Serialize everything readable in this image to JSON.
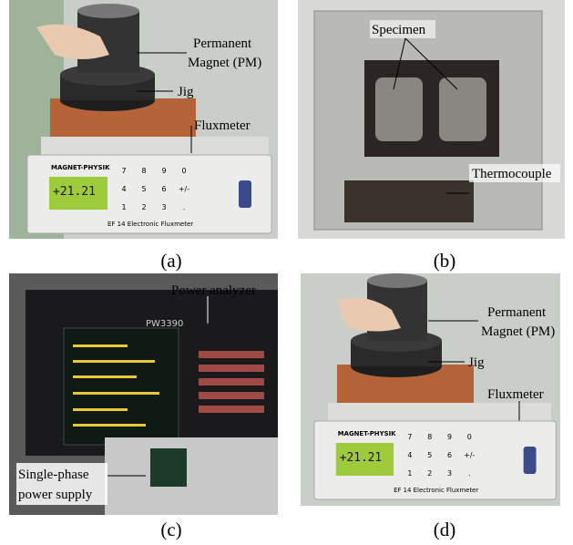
{
  "panels": [
    {
      "caption": "(a)",
      "annotations": [
        {
          "lines": [
            "Permanent",
            "Magnet (PM)"
          ]
        },
        {
          "lines": [
            "Jig"
          ]
        },
        {
          "lines": [
            "Fluxmeter"
          ]
        }
      ],
      "device": {
        "brand": "MAGNET-PHYSIK",
        "reading": "+21.21",
        "model": "EF 14 Electronic Fluxmeter",
        "keys": [
          "7",
          "8",
          "9",
          "0",
          "4",
          "5",
          "6",
          "+/-",
          "1",
          "2",
          "3",
          "."
        ]
      }
    },
    {
      "caption": "(b)",
      "annotations": [
        {
          "lines": [
            "Specimen"
          ]
        },
        {
          "lines": [
            "Thermocouple"
          ]
        }
      ]
    },
    {
      "caption": "(c)",
      "annotations": [
        {
          "lines": [
            "Power analyzer"
          ]
        },
        {
          "lines": [
            "Single-phase",
            "power supply"
          ]
        }
      ],
      "device": {
        "model": "PW3390"
      }
    },
    {
      "caption": "(d)",
      "annotations": [
        {
          "lines": [
            "Permanent",
            "Magnet (PM)"
          ]
        },
        {
          "lines": [
            "Jig"
          ]
        },
        {
          "lines": [
            "Fluxmeter"
          ]
        }
      ],
      "device": {
        "brand": "MAGNET-PHYSIK",
        "reading": "+21.21",
        "model": "EF 14 Electronic Fluxmeter",
        "keys": [
          "7",
          "8",
          "9",
          "0",
          "4",
          "5",
          "6",
          "+/-",
          "1",
          "2",
          "3",
          "."
        ]
      }
    }
  ]
}
